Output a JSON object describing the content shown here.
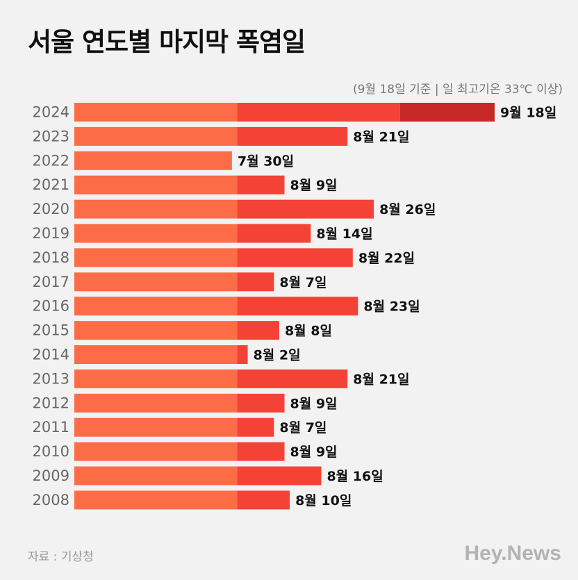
{
  "header": {
    "title": "서울 연도별 마지막 폭염일",
    "subtitle": "(9월 18일 기준 | 일 최고기온 33℃ 이상)"
  },
  "footer": {
    "source": "자료 : 기상청",
    "brand": "Hey.News"
  },
  "colors": {
    "july": "#fc6d47",
    "august": "#f44336",
    "september": "#c62828",
    "background": "#f2f2f2"
  },
  "chart_data": {
    "type": "bar",
    "orientation": "horizontal",
    "title": "서울 연도별 마지막 폭염일",
    "subtitle": "(9월 18일 기준 | 일 최고기온 33℃ 이상)",
    "xlim": [
      "7월 1일",
      "9월 18일"
    ],
    "categories": [
      "2024",
      "2023",
      "2022",
      "2021",
      "2020",
      "2019",
      "2018",
      "2017",
      "2016",
      "2015",
      "2014",
      "2013",
      "2012",
      "2011",
      "2010",
      "2009",
      "2008"
    ],
    "values": [
      {
        "month": 9,
        "day": 18
      },
      {
        "month": 8,
        "day": 21
      },
      {
        "month": 7,
        "day": 30
      },
      {
        "month": 8,
        "day": 9
      },
      {
        "month": 8,
        "day": 26
      },
      {
        "month": 8,
        "day": 14
      },
      {
        "month": 8,
        "day": 22
      },
      {
        "month": 8,
        "day": 7
      },
      {
        "month": 8,
        "day": 23
      },
      {
        "month": 8,
        "day": 8
      },
      {
        "month": 8,
        "day": 2
      },
      {
        "month": 8,
        "day": 21
      },
      {
        "month": 8,
        "day": 9
      },
      {
        "month": 8,
        "day": 7
      },
      {
        "month": 8,
        "day": 9
      },
      {
        "month": 8,
        "day": 16
      },
      {
        "month": 8,
        "day": 10
      }
    ],
    "labels": [
      "9월 18일",
      "8월 21일",
      "7월 30일",
      "8월 9일",
      "8월 26일",
      "8월 14일",
      "8월 22일",
      "8월 7일",
      "8월 23일",
      "8월 8일",
      "8월 2일",
      "8월 21일",
      "8월 9일",
      "8월 7일",
      "8월 9일",
      "8월 16일",
      "8월 10일"
    ]
  }
}
